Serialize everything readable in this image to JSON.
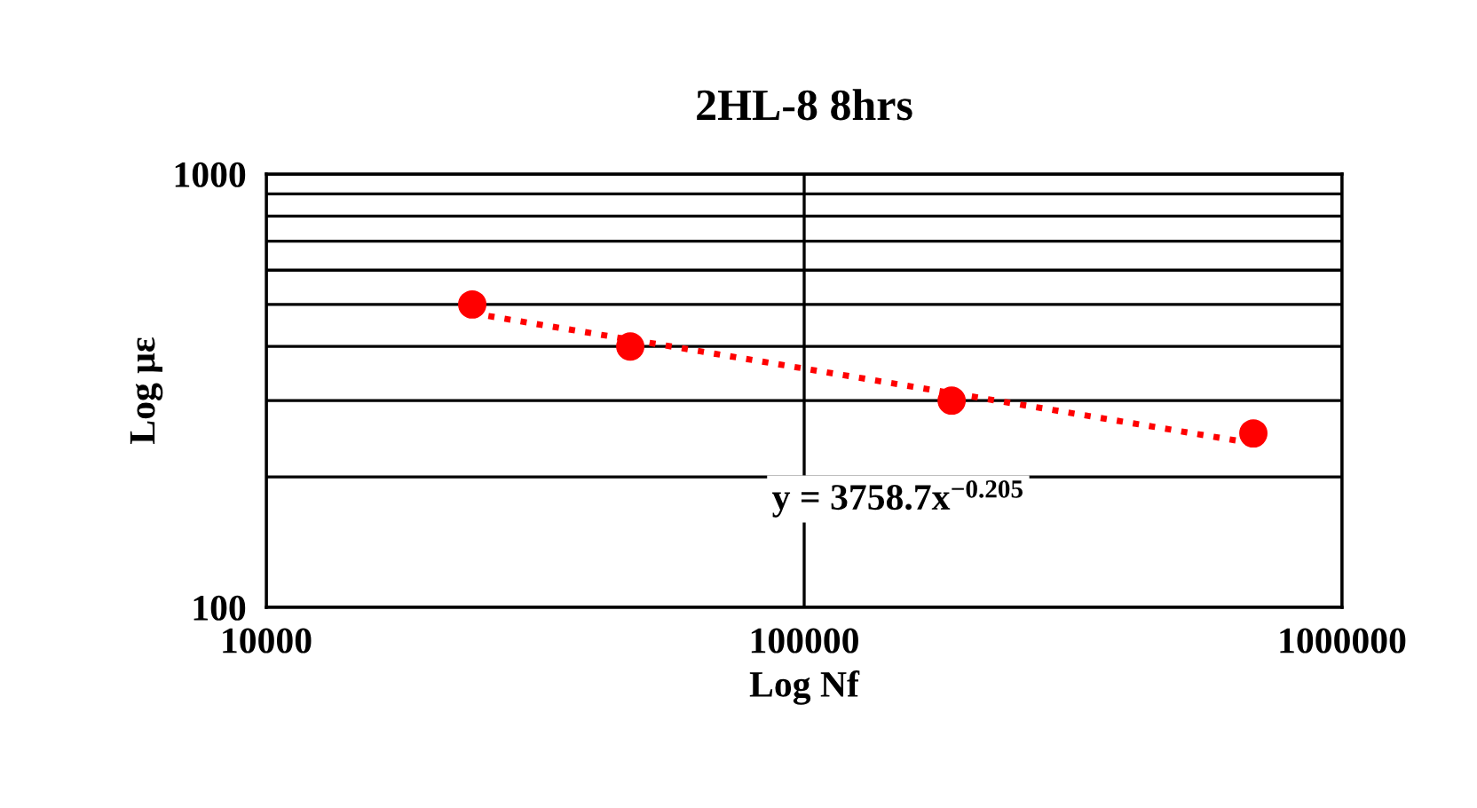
{
  "chart_data": {
    "type": "scatter",
    "title": "2HL-8 8hrs",
    "xlabel": "Log Nf",
    "ylabel": "Log με",
    "log": "xy",
    "xlim": [
      10000,
      1000000
    ],
    "xticks": [
      10000,
      100000,
      1000000
    ],
    "ylim": [
      100,
      1000
    ],
    "yticks": [
      100,
      {
        "value": 200,
        "label": null
      },
      {
        "value": 300,
        "label": null
      },
      {
        "value": 400,
        "label": null
      },
      {
        "value": 500,
        "label": null
      },
      {
        "value": 600,
        "label": null
      },
      {
        "value": 700,
        "label": null
      },
      {
        "value": 800,
        "label": null
      },
      {
        "value": 900,
        "label": null
      },
      1000
    ],
    "grid": true,
    "series": [
      {
        "color": "#ff0000",
        "marker": "circle",
        "x": [
          24150,
          47500,
          188000,
          684000
        ],
        "values": [
          500,
          400,
          300,
          252
        ]
      },
      {
        "type": "line",
        "color": "#ff0000",
        "line_style": "dotted",
        "marker": "none",
        "x": [
          24150,
          684000
        ],
        "values": [
          477,
          239
        ]
      }
    ],
    "annotations": [
      "y = 3758.7x$^{−0.205}$"
    ]
  }
}
